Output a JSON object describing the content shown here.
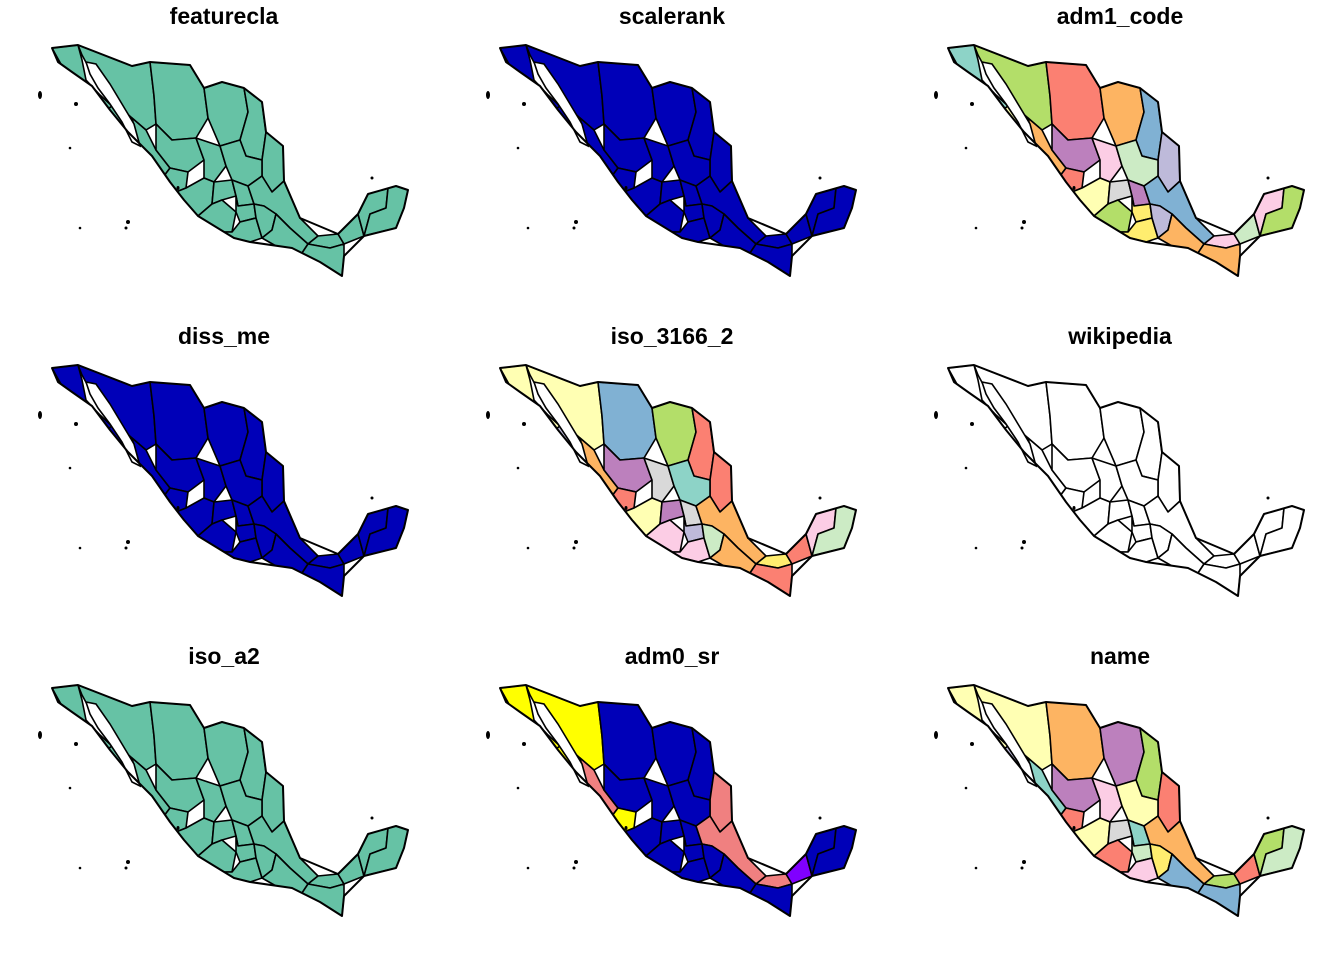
{
  "figure": {
    "panels": [
      {
        "title": "featurecla",
        "mode": "single",
        "fill": "#66c2a5"
      },
      {
        "title": "scalerank",
        "mode": "single",
        "fill": "#0000b8"
      },
      {
        "title": "adm1_code",
        "mode": "palette-a"
      },
      {
        "title": "diss_me",
        "mode": "single",
        "fill": "#0000b8"
      },
      {
        "title": "iso_3166_2",
        "mode": "palette-b"
      },
      {
        "title": "wikipedia",
        "mode": "single",
        "fill": "#ffffff"
      },
      {
        "title": "iso_a2",
        "mode": "single",
        "fill": "#66c2a5"
      },
      {
        "title": "adm0_sr",
        "mode": "adm0"
      },
      {
        "title": "name",
        "mode": "palette-c"
      }
    ]
  },
  "palette": [
    "#8dd3c7",
    "#ffffb3",
    "#bebada",
    "#fb8072",
    "#80b1d3",
    "#fdb462",
    "#b3de69",
    "#fccde5",
    "#d9d9d9",
    "#bc80bd",
    "#ccebc5",
    "#ffed6f"
  ],
  "adm0_colors": {
    "north_west": "#ffff00",
    "coast": "#f08080",
    "main": "#0000b8",
    "special": "#8000ff"
  },
  "outline_color": "#000000"
}
